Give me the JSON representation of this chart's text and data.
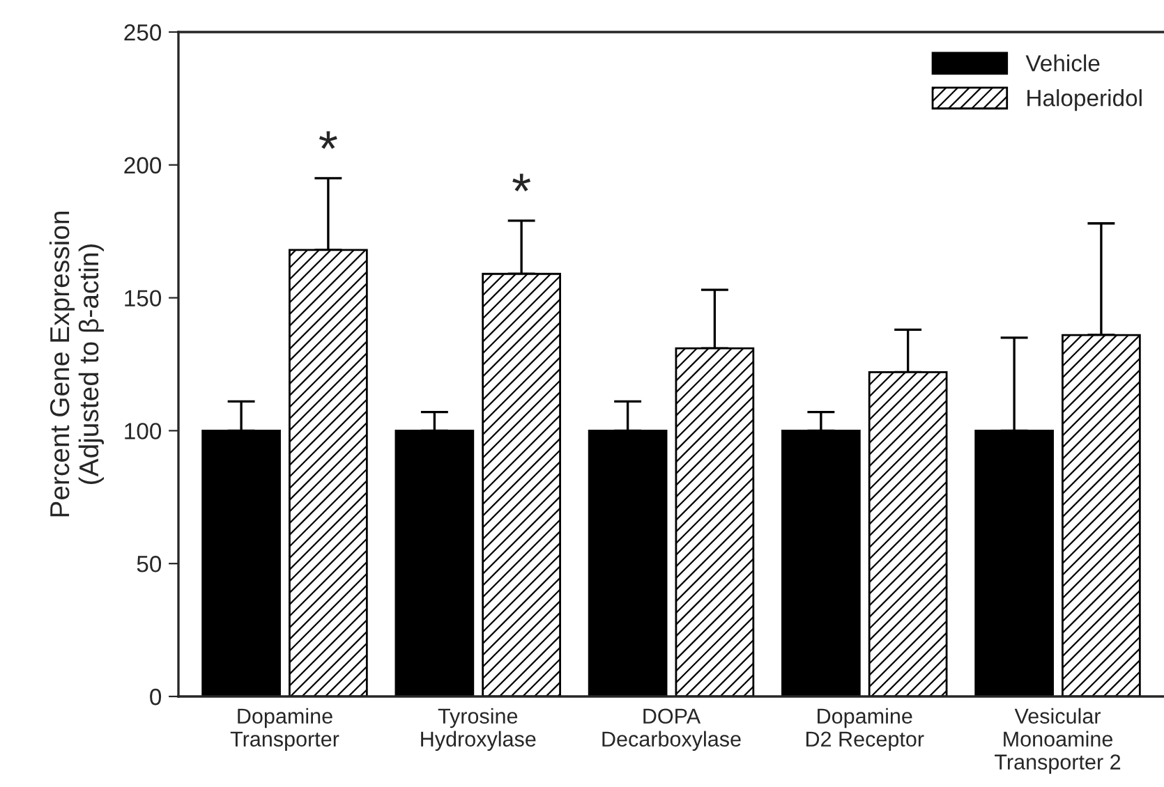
{
  "chart_data": {
    "type": "bar",
    "ylabel": "Percent Gene Expression\n(Adjusted to β-actin)",
    "categories": [
      "Dopamine\nTransporter",
      "Tyrosine\nHydroxylase",
      "DOPA\nDecarboxylase",
      "Dopamine\nD2 Receptor",
      "Vesicular\nMonoamine\nTransporter 2"
    ],
    "series": [
      {
        "name": "Vehicle",
        "color": "#000000",
        "values": [
          100,
          100,
          100,
          100,
          100
        ],
        "errors": [
          [
            100,
            111
          ],
          [
            100,
            107
          ],
          [
            100,
            111
          ],
          [
            100,
            107
          ],
          [
            100,
            135
          ]
        ]
      },
      {
        "name": "Haloperidol",
        "color": "#000000",
        "values": [
          168,
          159,
          131,
          122,
          136
        ],
        "errors": [
          [
            168,
            195
          ],
          [
            159,
            179
          ],
          [
            131,
            153
          ],
          [
            122,
            138
          ],
          [
            136,
            178
          ]
        ]
      }
    ],
    "ylim": [
      0,
      250
    ],
    "yticks": [
      0,
      50,
      100,
      150,
      200,
      250
    ],
    "annotations": [
      "*",
      "*"
    ],
    "legend": "top right",
    "grid": false
  }
}
